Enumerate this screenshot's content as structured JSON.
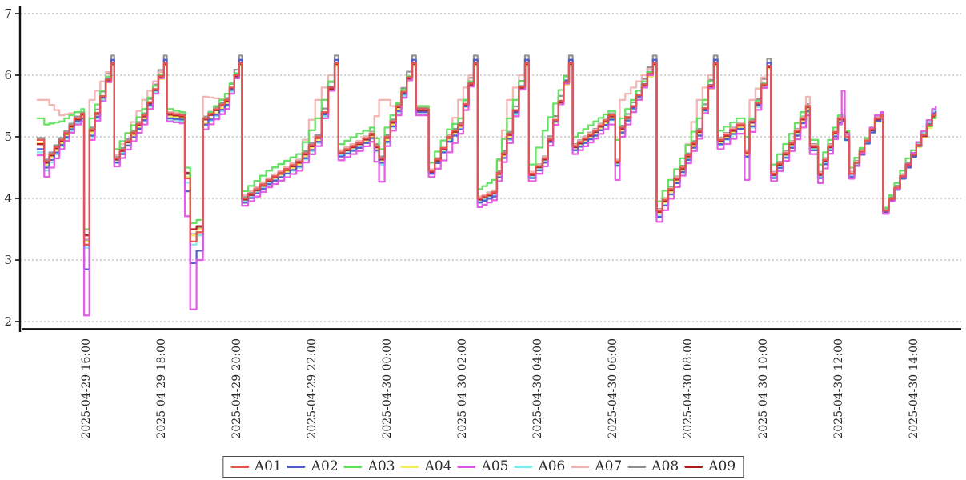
{
  "chart_data": {
    "type": "line",
    "title": "",
    "xlabel": "",
    "ylabel": "",
    "grid": "horizontal-dashed",
    "legend_position": "bottom-center",
    "ylim": [
      2,
      7
    ],
    "y_ticks": [
      2,
      3,
      4,
      5,
      6,
      7
    ],
    "x_unit": "decimal hours since 2025-04-29 00:00",
    "x_tick_hours": [
      16,
      18,
      20,
      22,
      24,
      26,
      28,
      30,
      32,
      34,
      36,
      38
    ],
    "x_tick_labels": [
      "2025-04-29 16:00",
      "2025-04-29 18:00",
      "2025-04-29 20:00",
      "2025-04-29 22:00",
      "2025-04-30 00:00",
      "2025-04-30 02:00",
      "2025-04-30 04:00",
      "2025-04-30 06:00",
      "2025-04-30 08:00",
      "2025-04-30 10:00",
      "2025-04-30 12:00",
      "2025-04-30 14:00"
    ],
    "x": [
      14.7,
      14.9,
      15.3,
      15.7,
      15.88,
      15.96,
      16.1,
      16.68,
      16.76,
      17.5,
      18.08,
      18.16,
      18.5,
      18.78,
      18.95,
      19.12,
      19.7,
      20.08,
      20.16,
      20.8,
      21.6,
      22.1,
      22.62,
      22.72,
      23.2,
      23.55,
      23.8,
      23.95,
      24.25,
      24.68,
      24.78,
      25.05,
      25.12,
      25.6,
      25.9,
      26.32,
      26.42,
      26.8,
      27.2,
      27.68,
      27.78,
      28.15,
      28.85,
      28.95,
      29.5,
      29.9,
      30.08,
      30.2,
      31.08,
      31.18,
      31.8,
      32.25,
      32.7,
      32.8,
      33.3,
      33.52,
      33.65,
      34.12,
      34.22,
      34.7,
      35.0,
      35.15,
      35.25,
      35.47,
      36.0,
      36.1,
      36.18,
      36.3,
      36.98,
      37.13,
      37.2,
      37.8,
      38.5,
      38.6
    ],
    "series": [
      {
        "name": "A01",
        "color": "#e5534f",
        "values": [
          4.95,
          4.6,
          4.95,
          5.3,
          5.38,
          3.25,
          5.12,
          6.2,
          4.65,
          5.35,
          6.2,
          5.38,
          5.35,
          3.3,
          3.45,
          5.3,
          5.6,
          6.2,
          4.0,
          4.3,
          4.6,
          5.0,
          6.2,
          4.75,
          4.9,
          5.05,
          4.65,
          5.0,
          5.5,
          6.2,
          5.45,
          5.45,
          4.45,
          5.0,
          5.2,
          6.2,
          4.0,
          4.1,
          5.05,
          6.2,
          4.4,
          4.65,
          6.2,
          4.85,
          5.1,
          5.35,
          4.6,
          5.15,
          6.2,
          3.8,
          4.5,
          5.1,
          6.2,
          4.95,
          5.2,
          4.75,
          5.25,
          6.15,
          4.4,
          4.9,
          5.3,
          5.5,
          4.85,
          4.4,
          5.3,
          5.3,
          5.0,
          4.4,
          5.3,
          5.35,
          3.8,
          4.55,
          5.35,
          5.4
        ]
      },
      {
        "name": "A02",
        "color": "#4f58c8",
        "values": [
          4.8,
          4.5,
          4.87,
          5.25,
          5.3,
          2.85,
          5.02,
          6.25,
          4.58,
          5.27,
          6.25,
          5.3,
          5.28,
          2.95,
          3.15,
          5.2,
          5.52,
          6.25,
          3.93,
          4.23,
          4.52,
          4.92,
          6.25,
          4.68,
          4.82,
          4.98,
          4.58,
          4.92,
          5.42,
          6.25,
          5.4,
          5.4,
          4.4,
          4.92,
          5.12,
          6.25,
          3.93,
          4.03,
          4.97,
          6.25,
          4.33,
          4.58,
          6.25,
          4.78,
          5.02,
          5.28,
          4.53,
          5.07,
          6.25,
          3.7,
          4.43,
          5.02,
          6.25,
          4.88,
          5.13,
          4.68,
          5.17,
          6.2,
          4.33,
          4.82,
          5.22,
          5.42,
          4.78,
          4.33,
          5.23,
          5.25,
          4.95,
          4.35,
          5.25,
          5.3,
          3.78,
          4.5,
          5.38,
          5.42
        ]
      },
      {
        "name": "A03",
        "color": "#5ee05e",
        "values": [
          5.3,
          5.2,
          5.25,
          5.4,
          5.45,
          3.5,
          5.3,
          6.2,
          4.8,
          5.45,
          6.2,
          5.45,
          5.4,
          3.6,
          3.65,
          5.3,
          5.7,
          6.2,
          4.12,
          4.45,
          4.72,
          5.3,
          6.2,
          4.88,
          5.05,
          5.15,
          4.8,
          5.15,
          5.55,
          6.2,
          5.5,
          5.5,
          4.58,
          5.12,
          5.3,
          6.2,
          4.15,
          4.3,
          5.3,
          6.2,
          4.55,
          5.1,
          6.2,
          5.0,
          5.25,
          5.42,
          4.95,
          5.3,
          6.2,
          3.95,
          4.65,
          5.3,
          6.2,
          5.1,
          5.3,
          5.0,
          5.3,
          6.15,
          4.55,
          5.05,
          5.4,
          5.5,
          4.95,
          4.55,
          5.35,
          5.35,
          5.1,
          4.5,
          5.3,
          5.32,
          3.85,
          4.65,
          5.3,
          5.35
        ]
      },
      {
        "name": "A04",
        "color": "#f2ee5f",
        "values": [
          4.9,
          4.55,
          4.9,
          5.27,
          5.33,
          3.3,
          5.07,
          6.15,
          4.6,
          5.3,
          6.15,
          5.33,
          5.3,
          3.4,
          3.5,
          5.22,
          5.55,
          6.15,
          3.97,
          4.27,
          4.55,
          4.95,
          6.15,
          4.7,
          4.85,
          5.0,
          4.6,
          4.95,
          5.45,
          6.15,
          5.42,
          5.42,
          4.42,
          4.95,
          5.15,
          6.15,
          3.97,
          4.06,
          5.0,
          6.15,
          4.37,
          4.62,
          6.15,
          4.8,
          5.05,
          5.3,
          4.57,
          5.1,
          6.15,
          3.76,
          4.45,
          5.05,
          6.15,
          4.9,
          5.15,
          4.71,
          5.18,
          6.1,
          4.37,
          4.86,
          5.25,
          5.43,
          4.81,
          4.37,
          5.26,
          5.27,
          4.96,
          4.39,
          5.24,
          5.26,
          3.77,
          4.52,
          5.3,
          5.33
        ]
      },
      {
        "name": "A05",
        "color": "#e257e2",
        "values": [
          4.7,
          4.35,
          4.8,
          5.2,
          5.25,
          2.1,
          4.95,
          6.2,
          4.52,
          5.2,
          6.2,
          5.25,
          5.22,
          2.2,
          3.0,
          5.12,
          5.45,
          6.2,
          3.88,
          4.18,
          4.45,
          4.85,
          6.2,
          4.62,
          4.77,
          4.92,
          4.27,
          4.85,
          5.35,
          6.2,
          5.35,
          5.35,
          4.35,
          4.75,
          5.05,
          6.2,
          3.86,
          3.97,
          4.9,
          6.2,
          4.28,
          4.52,
          6.2,
          4.72,
          4.97,
          5.2,
          4.3,
          5.0,
          6.2,
          3.62,
          4.37,
          4.97,
          6.2,
          4.8,
          5.05,
          4.3,
          5.08,
          6.15,
          4.28,
          4.77,
          5.15,
          5.35,
          4.72,
          4.25,
          5.2,
          5.75,
          5.05,
          4.32,
          5.35,
          5.4,
          3.75,
          4.56,
          5.45,
          5.5
        ]
      },
      {
        "name": "A06",
        "color": "#7deaee",
        "values": [
          4.75,
          4.45,
          4.85,
          5.22,
          5.28,
          3.2,
          5.0,
          6.2,
          4.62,
          5.25,
          6.2,
          5.28,
          5.26,
          3.25,
          3.4,
          5.18,
          5.5,
          6.2,
          3.95,
          4.25,
          4.5,
          4.9,
          6.2,
          4.7,
          4.84,
          4.97,
          4.55,
          4.9,
          5.4,
          6.2,
          5.41,
          5.41,
          4.41,
          4.93,
          5.13,
          6.2,
          3.95,
          4.05,
          4.95,
          6.2,
          4.35,
          4.6,
          6.2,
          4.79,
          5.03,
          5.27,
          4.56,
          5.06,
          6.2,
          3.72,
          4.42,
          5.02,
          6.2,
          4.87,
          5.12,
          4.67,
          5.15,
          6.15,
          4.35,
          4.84,
          5.23,
          5.41,
          4.8,
          4.36,
          5.24,
          5.26,
          4.94,
          4.37,
          5.26,
          5.29,
          3.79,
          4.54,
          5.42,
          5.48
        ]
      },
      {
        "name": "A07",
        "color": "#f1b2b0",
        "values": [
          5.6,
          5.6,
          5.35,
          5.4,
          5.4,
          3.35,
          5.6,
          6.2,
          4.7,
          5.6,
          6.2,
          5.4,
          5.38,
          3.3,
          3.5,
          5.65,
          5.6,
          6.2,
          4.05,
          4.33,
          4.63,
          5.6,
          6.2,
          4.78,
          4.93,
          5.07,
          5.6,
          5.6,
          5.4,
          6.2,
          5.5,
          5.5,
          4.47,
          5.02,
          5.6,
          6.2,
          4.03,
          4.12,
          5.6,
          6.2,
          4.43,
          4.67,
          6.2,
          4.87,
          5.12,
          5.37,
          4.63,
          5.6,
          6.2,
          3.82,
          4.52,
          5.6,
          6.2,
          4.97,
          5.22,
          4.78,
          5.6,
          6.15,
          4.42,
          4.92,
          5.32,
          5.65,
          4.87,
          4.42,
          5.32,
          5.32,
          5.02,
          4.42,
          5.32,
          5.36,
          3.81,
          4.56,
          5.4,
          5.45
        ]
      },
      {
        "name": "A08",
        "color": "#8f8f8f",
        "values": [
          4.98,
          4.63,
          4.98,
          5.33,
          5.4,
          3.32,
          5.15,
          6.32,
          4.68,
          5.38,
          6.32,
          5.4,
          5.37,
          3.42,
          3.52,
          5.33,
          5.63,
          6.32,
          4.03,
          4.33,
          4.63,
          5.03,
          6.32,
          4.78,
          4.93,
          5.08,
          4.68,
          5.03,
          5.53,
          6.32,
          5.47,
          5.47,
          4.47,
          5.03,
          5.23,
          6.32,
          4.03,
          4.13,
          5.08,
          6.32,
          4.43,
          4.68,
          6.32,
          4.88,
          5.13,
          5.38,
          4.63,
          5.18,
          6.32,
          3.83,
          4.53,
          5.13,
          6.32,
          4.98,
          5.23,
          4.78,
          5.28,
          6.27,
          4.43,
          4.93,
          5.33,
          5.53,
          4.88,
          4.43,
          5.33,
          5.33,
          5.03,
          4.43,
          5.33,
          5.38,
          3.83,
          4.58,
          5.38,
          5.43
        ]
      },
      {
        "name": "A09",
        "color": "#ae1a1e",
        "values": [
          4.88,
          4.58,
          4.93,
          5.28,
          5.36,
          3.4,
          5.1,
          6.18,
          4.63,
          5.33,
          6.18,
          5.36,
          5.33,
          3.5,
          3.55,
          5.28,
          5.58,
          6.18,
          3.98,
          4.28,
          4.58,
          4.98,
          6.18,
          4.73,
          4.88,
          5.03,
          4.63,
          4.98,
          5.48,
          6.18,
          5.43,
          5.43,
          4.43,
          4.98,
          5.18,
          6.18,
          3.98,
          4.08,
          5.03,
          6.18,
          4.38,
          4.63,
          6.18,
          4.83,
          5.08,
          5.33,
          4.58,
          5.13,
          6.18,
          3.78,
          4.48,
          5.08,
          6.18,
          4.93,
          5.18,
          4.73,
          5.23,
          6.13,
          4.38,
          4.88,
          5.28,
          5.48,
          4.83,
          4.38,
          5.28,
          5.28,
          5.08,
          4.4,
          5.28,
          5.33,
          3.78,
          4.53,
          5.33,
          5.38
        ]
      }
    ]
  },
  "colors": {
    "grid": "#a8a8a8",
    "axis": "#111111",
    "tick_text": "#2b2b2b",
    "legend_border": "#4a4a4a",
    "background": "#ffffff"
  }
}
